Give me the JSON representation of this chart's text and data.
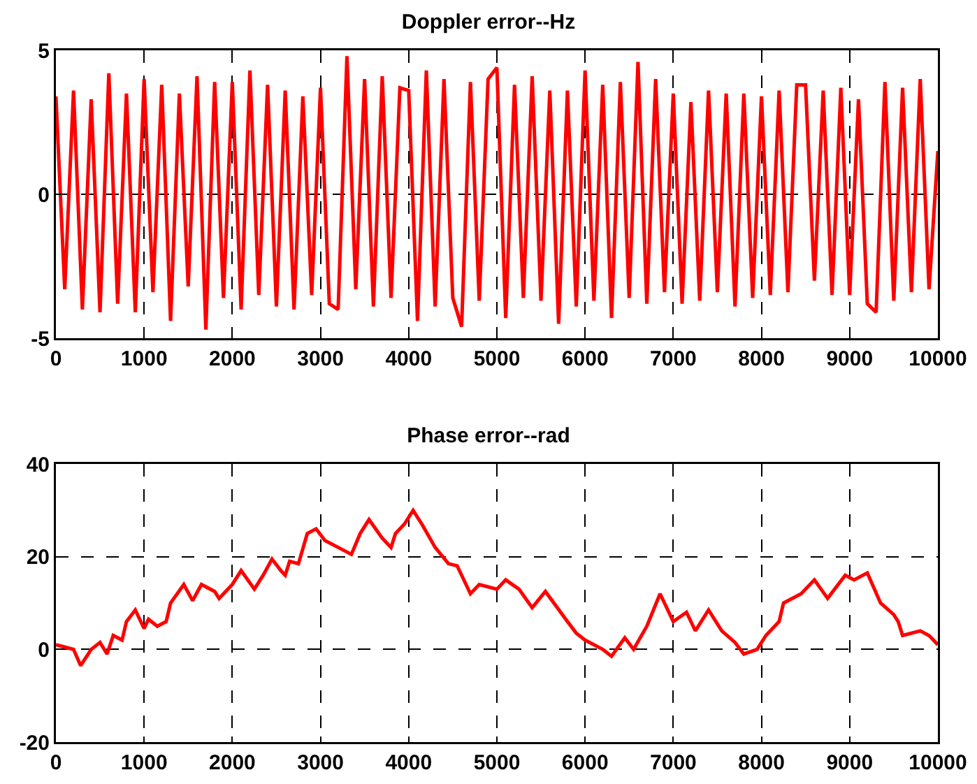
{
  "chart_data": [
    {
      "type": "line",
      "title": "Doppler error--Hz",
      "xlim": [
        0,
        10000
      ],
      "xticks": [
        0,
        1000,
        2000,
        3000,
        4000,
        5000,
        6000,
        7000,
        8000,
        9000,
        10000
      ],
      "ylim": [
        -5,
        5
      ],
      "yticks": [
        -5,
        0,
        5
      ],
      "grid": true,
      "marker": "none",
      "line_style": "solid",
      "x": [
        0,
        100,
        200,
        300,
        400,
        500,
        600,
        700,
        800,
        900,
        1000,
        1100,
        1200,
        1300,
        1400,
        1500,
        1600,
        1700,
        1800,
        1900,
        2000,
        2100,
        2200,
        2300,
        2400,
        2500,
        2600,
        2700,
        2800,
        2900,
        3000,
        3100,
        3200,
        3300,
        3400,
        3500,
        3600,
        3700,
        3800,
        3900,
        4000,
        4100,
        4200,
        4300,
        4400,
        4500,
        4600,
        4700,
        4800,
        4900,
        5000,
        5100,
        5200,
        5300,
        5400,
        5500,
        5600,
        5700,
        5800,
        5900,
        6000,
        6100,
        6200,
        6300,
        6400,
        6500,
        6600,
        6700,
        6800,
        6900,
        7000,
        7100,
        7200,
        7300,
        7400,
        7500,
        7600,
        7700,
        7800,
        7900,
        8000,
        8100,
        8200,
        8300,
        8400,
        8500,
        8600,
        8700,
        8800,
        8900,
        9000,
        9100,
        9200,
        9300,
        9400,
        9500,
        9600,
        9700,
        9800,
        9900,
        10000
      ],
      "series": [
        {
          "color": "#ff0000",
          "values": [
            3.4,
            -3.3,
            3.6,
            -4.0,
            3.3,
            -4.1,
            4.2,
            -3.8,
            3.5,
            -4.1,
            4.0,
            -3.4,
            3.8,
            -4.4,
            3.5,
            -3.2,
            4.1,
            -4.7,
            3.9,
            -3.6,
            3.9,
            -4.0,
            4.3,
            -3.5,
            3.8,
            -3.9,
            3.6,
            -4.0,
            3.4,
            -3.5,
            3.7,
            -3.8,
            -4.0,
            4.8,
            -3.3,
            4.0,
            -3.9,
            4.1,
            -3.6,
            3.7,
            3.6,
            -4.4,
            4.3,
            -3.9,
            4.0,
            -3.6,
            -4.6,
            3.9,
            -3.7,
            4.0,
            4.4,
            -4.3,
            3.8,
            -3.6,
            4.1,
            -3.7,
            3.6,
            -4.5,
            3.6,
            -3.9,
            4.3,
            -3.7,
            3.8,
            -4.3,
            3.9,
            -3.6,
            4.6,
            -3.8,
            4.0,
            -3.4,
            3.5,
            -3.8,
            3.2,
            -3.7,
            3.6,
            -3.4,
            3.5,
            -3.9,
            3.5,
            -3.6,
            3.4,
            -3.5,
            3.6,
            -3.4,
            3.8,
            3.8,
            -3.0,
            3.6,
            -3.5,
            3.7,
            -3.5,
            3.3,
            -3.8,
            -4.1,
            3.9,
            -3.7,
            3.7,
            -3.4,
            4.0,
            -3.3,
            1.5
          ]
        }
      ]
    },
    {
      "type": "line",
      "title": "Phase error--rad",
      "xlim": [
        0,
        10000
      ],
      "xticks": [
        0,
        1000,
        2000,
        3000,
        4000,
        5000,
        6000,
        7000,
        8000,
        9000,
        10000
      ],
      "ylim": [
        -20,
        40
      ],
      "yticks": [
        -20,
        0,
        20,
        40
      ],
      "grid": true,
      "marker": "none",
      "line_style": "solid",
      "x": [
        0,
        100,
        200,
        280,
        400,
        500,
        580,
        650,
        750,
        800,
        900,
        1000,
        1050,
        1150,
        1250,
        1300,
        1450,
        1550,
        1650,
        1800,
        1850,
        2000,
        2100,
        2250,
        2350,
        2450,
        2550,
        2600,
        2650,
        2750,
        2850,
        2950,
        3050,
        3200,
        3350,
        3450,
        3550,
        3700,
        3800,
        3850,
        3950,
        4050,
        4150,
        4300,
        4450,
        4550,
        4700,
        4800,
        5000,
        5100,
        5250,
        5400,
        5550,
        5800,
        5900,
        6000,
        6200,
        6300,
        6450,
        6550,
        6700,
        6850,
        7000,
        7150,
        7250,
        7400,
        7550,
        7700,
        7800,
        7950,
        8050,
        8200,
        8250,
        8450,
        8600,
        8750,
        8950,
        9050,
        9200,
        9350,
        9500,
        9550,
        9600,
        9800,
        9900,
        10000
      ],
      "series": [
        {
          "color": "#ff0000",
          "values": [
            1,
            0.5,
            0,
            -3.5,
            0,
            1.5,
            -1,
            3,
            2,
            6,
            8.5,
            4.5,
            6.5,
            5,
            6,
            10,
            14,
            10.5,
            14,
            12.5,
            11,
            14,
            17,
            13,
            16,
            19.5,
            17,
            16,
            19,
            18.5,
            25,
            26,
            23.5,
            22,
            20.5,
            25,
            28,
            24,
            22,
            25,
            27,
            30,
            27,
            22,
            18.5,
            18,
            12,
            14,
            13,
            15,
            13,
            9,
            12.5,
            6,
            3.5,
            2,
            0,
            -1.5,
            2.5,
            0,
            5,
            12,
            6,
            8,
            4,
            8.5,
            4,
            1.5,
            -1,
            0,
            3,
            6,
            10,
            12,
            15,
            11,
            16,
            15,
            16.5,
            10,
            7.5,
            6,
            3,
            4,
            3,
            1
          ]
        }
      ]
    }
  ]
}
